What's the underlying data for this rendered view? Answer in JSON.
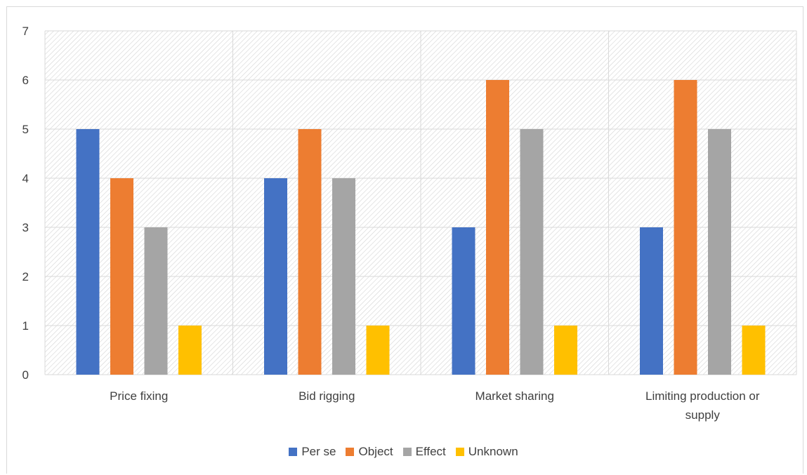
{
  "chart_data": {
    "type": "bar",
    "categories": [
      "Price fixing",
      "Bid rigging",
      "Market sharing",
      "Limiting production or supply"
    ],
    "series": [
      {
        "name": "Per se",
        "values": [
          5,
          4,
          3,
          3
        ],
        "color": "#4472c4"
      },
      {
        "name": "Object",
        "values": [
          4,
          5,
          6,
          6
        ],
        "color": "#ed7d31"
      },
      {
        "name": "Effect",
        "values": [
          3,
          4,
          5,
          5
        ],
        "color": "#a5a5a5"
      },
      {
        "name": "Unknown",
        "values": [
          1,
          1,
          1,
          1
        ],
        "color": "#ffc000"
      }
    ],
    "y_ticks": [
      "0",
      "1",
      "2",
      "3",
      "4",
      "5",
      "6",
      "7"
    ],
    "ylim": [
      0,
      7
    ],
    "grid": true,
    "legend_position": "bottom",
    "plot_background": "hatched"
  }
}
